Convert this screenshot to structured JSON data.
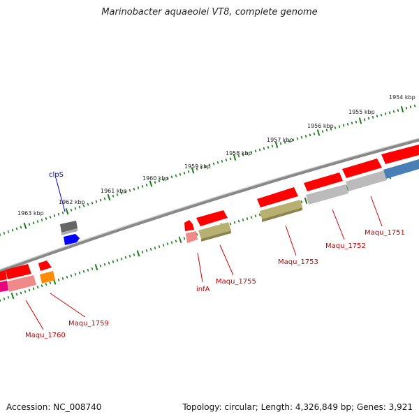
{
  "title": "Marinobacter aquaeolei VT8, complete genome",
  "accession": "Accession: NC_008740",
  "topology": "Topology: circular; Length: 4,326,849 bp; Genes: 3,921",
  "ticks": [
    "1954 kbp",
    "1955 kbp",
    "1956 kbp",
    "1957 kbp",
    "1958 kbp",
    "1959 kbp",
    "1960 kbp",
    "1961 kbp",
    "1962 kbp",
    "1963 kbp"
  ],
  "genes": {
    "clpS": "clpS",
    "maqu_1751": "Maqu_1751",
    "maqu_1752": "Maqu_1752",
    "maqu_1753": "Maqu_1753",
    "maqu_1755": "Maqu_1755",
    "infA": "infA",
    "maqu_1759": "Maqu_1759",
    "maqu_1760": "Maqu_1760"
  },
  "colors": {
    "backbone": "#888888",
    "ticks": "#1a7a1a",
    "gene_red": "#ff0000",
    "gene_pink": "#f08a8a",
    "gene_olive": "#b8b070",
    "gene_gray": "#bbbbbb",
    "gene_steel": "#4a7fb5",
    "gene_dark": "#666666",
    "gene_blue": "#0000ff",
    "gene_orange": "#ff8c00",
    "gene_magenta": "#e6007e",
    "label_red": "#c00000",
    "label_blue": "#0000aa"
  }
}
